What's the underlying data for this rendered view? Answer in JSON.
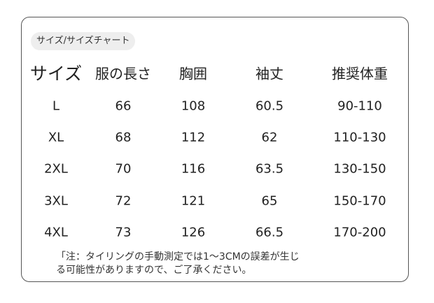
{
  "tag": "サイズ/サイズチャート",
  "table": {
    "header": [
      "サイズ",
      "服の長さ",
      "胸囲",
      "袖丈",
      "推奨体重"
    ],
    "rows": [
      [
        "L",
        66,
        108,
        60.5,
        "90-110"
      ],
      [
        "XL",
        68,
        112,
        62,
        "110-130"
      ],
      [
        "2XL",
        70,
        116,
        63.5,
        "130-150"
      ],
      [
        "3XL",
        72,
        121,
        65,
        "150-170"
      ],
      [
        "4XL",
        73,
        126,
        66.5,
        "170-200"
      ]
    ]
  },
  "note": [
    "「注：タイリングの手動測定では1～3CMの誤差が生じ",
    "る可能性がありますので、ご了承ください。"
  ]
}
